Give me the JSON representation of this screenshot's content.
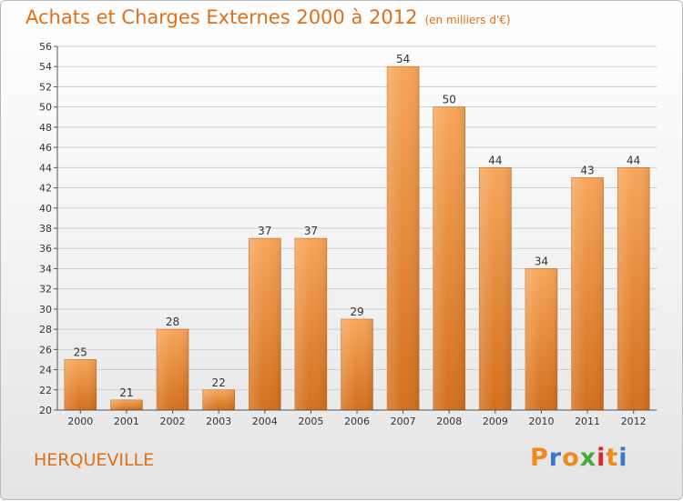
{
  "chart_data": {
    "type": "bar",
    "title": "Achats et Charges Externes 2000 à 2012",
    "subtitle": "(en milliers d'€)",
    "categories": [
      "2000",
      "2001",
      "2002",
      "2003",
      "2004",
      "2005",
      "2006",
      "2007",
      "2008",
      "2009",
      "2010",
      "2011",
      "2012"
    ],
    "values": [
      25,
      21,
      28,
      22,
      37,
      37,
      29,
      54,
      50,
      44,
      34,
      43,
      44
    ],
    "ylim": [
      20,
      56
    ],
    "yticks": [
      20,
      22,
      24,
      26,
      28,
      30,
      32,
      34,
      36,
      38,
      40,
      42,
      44,
      46,
      48,
      50,
      52,
      54,
      56
    ],
    "grid": true,
    "bar_color_top": "#f7a65a",
    "bar_color_bottom": "#d36f1c"
  },
  "commune": "HERQUEVILLE",
  "logo": {
    "text": "Proxiti",
    "letters": [
      "P",
      "r",
      "o",
      "x",
      "i",
      "t",
      "i"
    ],
    "colors": [
      "#f08a1c",
      "#3a78c8",
      "#f08a1c",
      "#49a83a",
      "#e2242a",
      "#f08a1c",
      "#3a78c8"
    ]
  }
}
